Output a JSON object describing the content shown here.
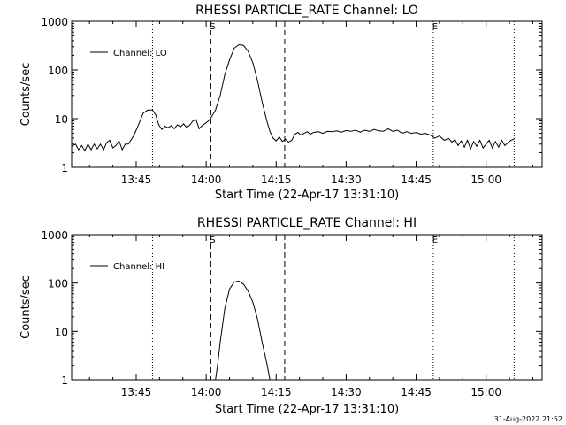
{
  "chart_data": [
    {
      "type": "line",
      "title": "RHESSI PARTICLE_RATE Channel: LO",
      "xlabel": "Start Time (22-Apr-17 13:31:10)",
      "ylabel": "Counts/sec",
      "yscale": "log",
      "ylim": [
        1,
        1000
      ],
      "ytick_labels": [
        "1",
        "10",
        "100",
        "1000"
      ],
      "xlim": [
        "13:31:10",
        "15:12:00"
      ],
      "xtick_labels": [
        "13:45",
        "14:00",
        "14:15",
        "14:30",
        "14:45",
        "15:00"
      ],
      "legend": "Channel: LO",
      "legend_position": "upper-left",
      "markers": {
        "dashed": [
          "14:01:00",
          "14:16:50"
        ],
        "dotted": [
          "13:48:30",
          "14:48:40",
          "15:06:00"
        ],
        "letters": [
          {
            "text": "S",
            "at": "14:01:00"
          },
          {
            "text": "E",
            "at": "14:48:40"
          }
        ]
      },
      "series": [
        {
          "name": "Channel: LO",
          "points": [
            [
              "13:31:10",
              2.7
            ],
            [
              "13:32:00",
              3.0
            ],
            [
              "13:32:40",
              2.3
            ],
            [
              "13:33:20",
              2.8
            ],
            [
              "13:34:00",
              2.2
            ],
            [
              "13:34:40",
              3.0
            ],
            [
              "13:35:20",
              2.3
            ],
            [
              "13:36:00",
              3.0
            ],
            [
              "13:36:40",
              2.4
            ],
            [
              "13:37:20",
              3.0
            ],
            [
              "13:38:00",
              2.3
            ],
            [
              "13:38:40",
              3.2
            ],
            [
              "13:39:20",
              3.6
            ],
            [
              "13:40:00",
              2.5
            ],
            [
              "13:40:40",
              2.8
            ],
            [
              "13:41:20",
              3.5
            ],
            [
              "13:42:00",
              2.3
            ],
            [
              "13:42:40",
              3.0
            ],
            [
              "13:43:20",
              3.0
            ],
            [
              "13:44:30",
              4.5
            ],
            [
              "13:45:30",
              7.5
            ],
            [
              "13:46:30",
              13
            ],
            [
              "13:47:30",
              15
            ],
            [
              "13:48:30",
              15
            ],
            [
              "13:49:10",
              12
            ],
            [
              "13:49:50",
              7.5
            ],
            [
              "13:50:30",
              6.0
            ],
            [
              "13:51:10",
              7.0
            ],
            [
              "13:51:50",
              6.5
            ],
            [
              "13:52:30",
              7.2
            ],
            [
              "13:53:10",
              6.2
            ],
            [
              "13:53:50",
              7.5
            ],
            [
              "13:54:30",
              6.8
            ],
            [
              "13:55:10",
              7.8
            ],
            [
              "13:55:50",
              6.6
            ],
            [
              "13:56:30",
              7.4
            ],
            [
              "13:57:10",
              9.0
            ],
            [
              "13:57:50",
              9.5
            ],
            [
              "13:58:30",
              6.2
            ],
            [
              "13:59:10",
              7.2
            ],
            [
              "13:59:50",
              8.0
            ],
            [
              "14:00:30",
              9.0
            ],
            [
              "14:01:10",
              11
            ],
            [
              "14:02:00",
              15
            ],
            [
              "14:03:00",
              30
            ],
            [
              "14:04:00",
              80
            ],
            [
              "14:05:00",
              160
            ],
            [
              "14:06:00",
              280
            ],
            [
              "14:07:00",
              330
            ],
            [
              "14:08:00",
              320
            ],
            [
              "14:09:00",
              240
            ],
            [
              "14:10:00",
              140
            ],
            [
              "14:11:00",
              60
            ],
            [
              "14:12:00",
              22
            ],
            [
              "14:13:00",
              9
            ],
            [
              "14:13:40",
              5.5
            ],
            [
              "14:14:20",
              4.0
            ],
            [
              "14:15:00",
              3.5
            ],
            [
              "14:15:40",
              4.2
            ],
            [
              "14:16:20",
              3.4
            ],
            [
              "14:17:00",
              3.8
            ],
            [
              "14:17:40",
              3.3
            ],
            [
              "14:18:20",
              3.6
            ],
            [
              "14:19:00",
              4.8
            ],
            [
              "14:19:40",
              5.2
            ],
            [
              "14:20:20",
              4.6
            ],
            [
              "14:21:00",
              5.0
            ],
            [
              "14:21:40",
              5.4
            ],
            [
              "14:22:20",
              4.8
            ],
            [
              "14:23:00",
              5.2
            ],
            [
              "14:24:00",
              5.4
            ],
            [
              "14:25:00",
              5.0
            ],
            [
              "14:26:00",
              5.5
            ],
            [
              "14:27:00",
              5.4
            ],
            [
              "14:28:00",
              5.6
            ],
            [
              "14:29:00",
              5.3
            ],
            [
              "14:30:00",
              5.7
            ],
            [
              "14:31:00",
              5.5
            ],
            [
              "14:32:00",
              5.8
            ],
            [
              "14:33:00",
              5.3
            ],
            [
              "14:34:00",
              5.8
            ],
            [
              "14:35:00",
              5.5
            ],
            [
              "14:36:00",
              6.0
            ],
            [
              "14:37:00",
              5.6
            ],
            [
              "14:38:00",
              5.5
            ],
            [
              "14:39:00",
              6.2
            ],
            [
              "14:40:00",
              5.5
            ],
            [
              "14:41:00",
              5.8
            ],
            [
              "14:42:00",
              5.0
            ],
            [
              "14:43:00",
              5.4
            ],
            [
              "14:44:00",
              5.0
            ],
            [
              "14:45:00",
              5.2
            ],
            [
              "14:46:00",
              4.8
            ],
            [
              "14:47:00",
              5.0
            ],
            [
              "14:48:00",
              4.6
            ],
            [
              "14:49:00",
              4.0
            ],
            [
              "14:50:00",
              4.4
            ],
            [
              "14:51:00",
              3.6
            ],
            [
              "14:52:00",
              3.9
            ],
            [
              "14:52:40",
              3.3
            ],
            [
              "14:53:20",
              3.7
            ],
            [
              "14:54:00",
              2.8
            ],
            [
              "14:54:40",
              3.5
            ],
            [
              "14:55:20",
              2.6
            ],
            [
              "14:56:00",
              3.6
            ],
            [
              "14:56:40",
              2.4
            ],
            [
              "14:57:20",
              3.4
            ],
            [
              "14:58:00",
              2.7
            ],
            [
              "14:58:40",
              3.6
            ],
            [
              "14:59:20",
              2.5
            ],
            [
              "15:00:00",
              3.0
            ],
            [
              "15:00:40",
              3.6
            ],
            [
              "15:01:20",
              2.5
            ],
            [
              "15:02:00",
              3.4
            ],
            [
              "15:02:40",
              2.6
            ],
            [
              "15:03:20",
              3.6
            ],
            [
              "15:04:00",
              2.8
            ],
            [
              "15:04:40",
              3.2
            ],
            [
              "15:05:20",
              3.6
            ],
            [
              "15:06:00",
              3.8
            ]
          ]
        }
      ]
    },
    {
      "type": "line",
      "title": "RHESSI PARTICLE_RATE Channel: HI",
      "xlabel": "Start Time (22-Apr-17 13:31:10)",
      "ylabel": "Counts/sec",
      "yscale": "log",
      "ylim": [
        1,
        1000
      ],
      "ytick_labels": [
        "1",
        "10",
        "100",
        "1000"
      ],
      "xlim": [
        "13:31:10",
        "15:12:00"
      ],
      "xtick_labels": [
        "13:45",
        "14:00",
        "14:15",
        "14:30",
        "14:45",
        "15:00"
      ],
      "legend": "Channel: HI",
      "legend_position": "upper-left",
      "markers": {
        "dashed": [
          "14:01:00",
          "14:16:50"
        ],
        "dotted": [
          "13:48:30",
          "14:48:40",
          "15:06:00"
        ],
        "letters": [
          {
            "text": "S",
            "at": "14:01:00"
          },
          {
            "text": "E",
            "at": "14:48:40"
          }
        ]
      },
      "series": [
        {
          "name": "Channel: HI",
          "points": [
            [
              "14:02:00",
              1.0
            ],
            [
              "14:02:30",
              2.2
            ],
            [
              "14:03:00",
              6
            ],
            [
              "14:04:00",
              30
            ],
            [
              "14:05:00",
              75
            ],
            [
              "14:06:00",
              105
            ],
            [
              "14:07:00",
              110
            ],
            [
              "14:08:00",
              95
            ],
            [
              "14:09:00",
              68
            ],
            [
              "14:10:00",
              40
            ],
            [
              "14:11:00",
              18
            ],
            [
              "14:12:00",
              6
            ],
            [
              "14:13:00",
              2.2
            ],
            [
              "14:13:40",
              1.0
            ]
          ]
        }
      ]
    }
  ],
  "timestamp": "31-Aug-2022 21:52"
}
